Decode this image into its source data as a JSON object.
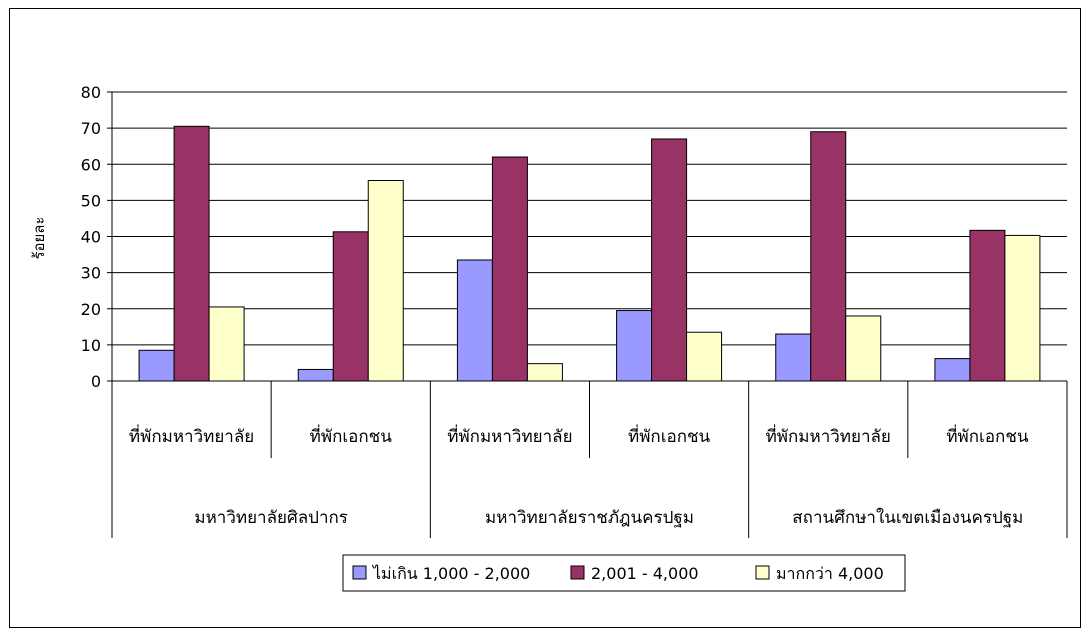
{
  "chart_data": {
    "type": "bar",
    "title": "",
    "ylabel": "ร้อยละ",
    "xlabel": "",
    "ylim": [
      0,
      80
    ],
    "yticks": [
      0,
      10,
      20,
      30,
      40,
      50,
      60,
      70,
      80
    ],
    "grid": true,
    "legend_position": "bottom",
    "categories": [
      "ที่พักมหาวิทยาลัย",
      "ที่พักเอกชน",
      "ที่พักมหาวิทยาลัย",
      "ที่พักเอกชน",
      "ที่พักมหาวิทยาลัย",
      "ที่พักเอกชน"
    ],
    "groups": [
      {
        "label": "มหาวิทยาลัยศิลปากร",
        "span": 2
      },
      {
        "label": "มหาวิทยาลัยราชภัฎนครปฐม",
        "span": 2
      },
      {
        "label": "สถานศึกษาในเขตเมืองนครปฐม",
        "span": 2
      }
    ],
    "series": [
      {
        "name": "ไม่เกิน 1,000 - 2,000",
        "color": "#9999FF",
        "values": [
          8.5,
          3.2,
          33.5,
          19.5,
          13,
          6.2
        ]
      },
      {
        "name": "2,001 - 4,000",
        "color": "#993366",
        "values": [
          70.5,
          41.3,
          62,
          67,
          69,
          41.7
        ]
      },
      {
        "name": "มากกว่า 4,000",
        "color": "#FFFFCC",
        "values": [
          20.5,
          55.5,
          4.8,
          13.5,
          18,
          40.3
        ]
      }
    ]
  }
}
